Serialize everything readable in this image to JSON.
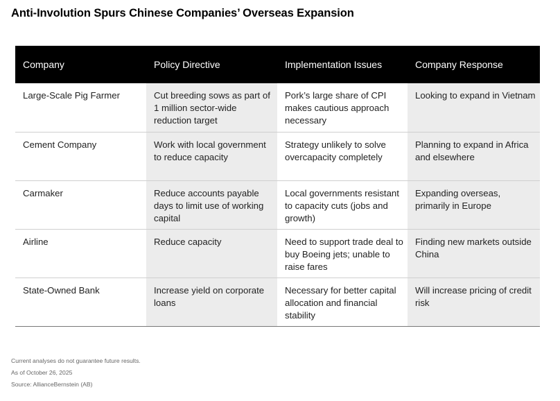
{
  "title": "Anti-Involution Spurs Chinese Companies’ Overseas Expansion",
  "table": {
    "headers": [
      "Company",
      "Policy Directive",
      "Implementation Issues",
      "Company Response"
    ],
    "rows": [
      [
        "Large-Scale Pig Farmer",
        "Cut breeding sows as part of 1 million sector-wide reduction target",
        "Pork’s large share of CPI makes cautious approach necessary",
        "Looking to expand in Vietnam"
      ],
      [
        "Cement Company",
        "Work with local government to reduce capacity",
        "Strategy unlikely to solve overcapacity completely",
        "Planning to expand in Africa and elsewhere"
      ],
      [
        "Carmaker",
        "Reduce accounts payable days to limit use of working capital",
        "Local governments resistant to capacity cuts (jobs and growth)",
        "Expanding overseas, primarily in Europe"
      ],
      [
        "Airline",
        "Reduce capacity",
        "Need to support trade deal to buy Boeing jets; unable to raise fares",
        "Finding new markets outside China"
      ],
      [
        "State-Owned Bank",
        "Increase yield on corporate loans",
        "Necessary for better capital allocation and financial stability",
        "Will increase pricing of credit risk"
      ]
    ]
  },
  "footnotes": [
    "Current analyses do not guarantee future results.",
    "As of October 26, 2025",
    "Source: AllianceBernstein (AB)"
  ],
  "colors": {
    "header_background": "#000000",
    "shaded_column": "#ececec",
    "text": "#222222"
  }
}
